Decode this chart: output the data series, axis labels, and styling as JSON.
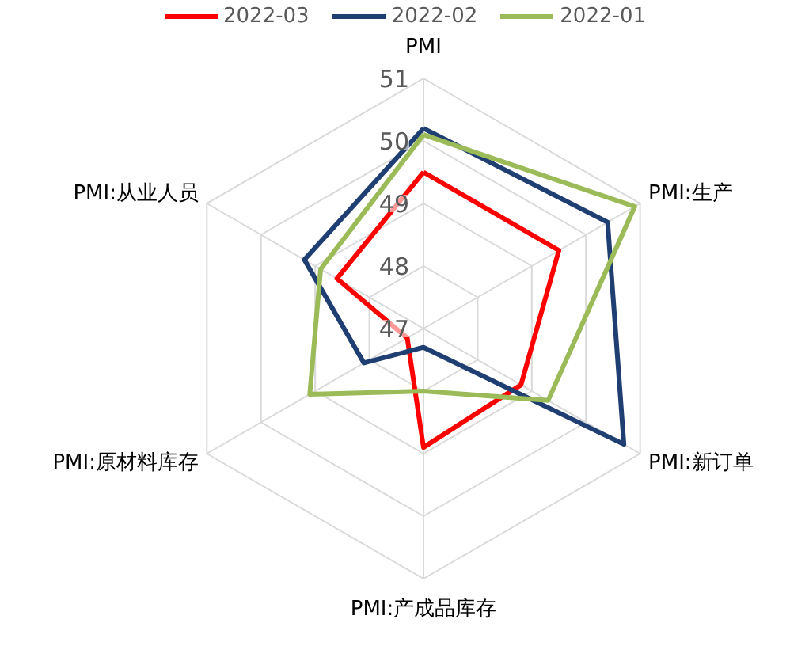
{
  "chart_data": {
    "type": "radar",
    "categories": [
      "PMI",
      "PMI:生产",
      "PMI:新订单",
      "PMI:产成品库存",
      "PMI:原材料库存",
      "PMI:从业人员"
    ],
    "series": [
      {
        "name": "2022-03",
        "color": "#ff0000",
        "values": [
          49.5,
          49.5,
          48.8,
          48.9,
          47.3,
          48.6
        ]
      },
      {
        "name": "2022-02",
        "color": "#1f3f73",
        "values": [
          50.2,
          50.4,
          50.7,
          47.3,
          48.1,
          49.2
        ]
      },
      {
        "name": "2022-01",
        "color": "#9bbb59",
        "values": [
          50.1,
          50.9,
          49.3,
          48.0,
          49.1,
          48.9
        ]
      }
    ],
    "ylim": [
      47,
      51
    ],
    "yticks": [
      47,
      48,
      49,
      50,
      51
    ],
    "grid": true,
    "legend": "top"
  }
}
